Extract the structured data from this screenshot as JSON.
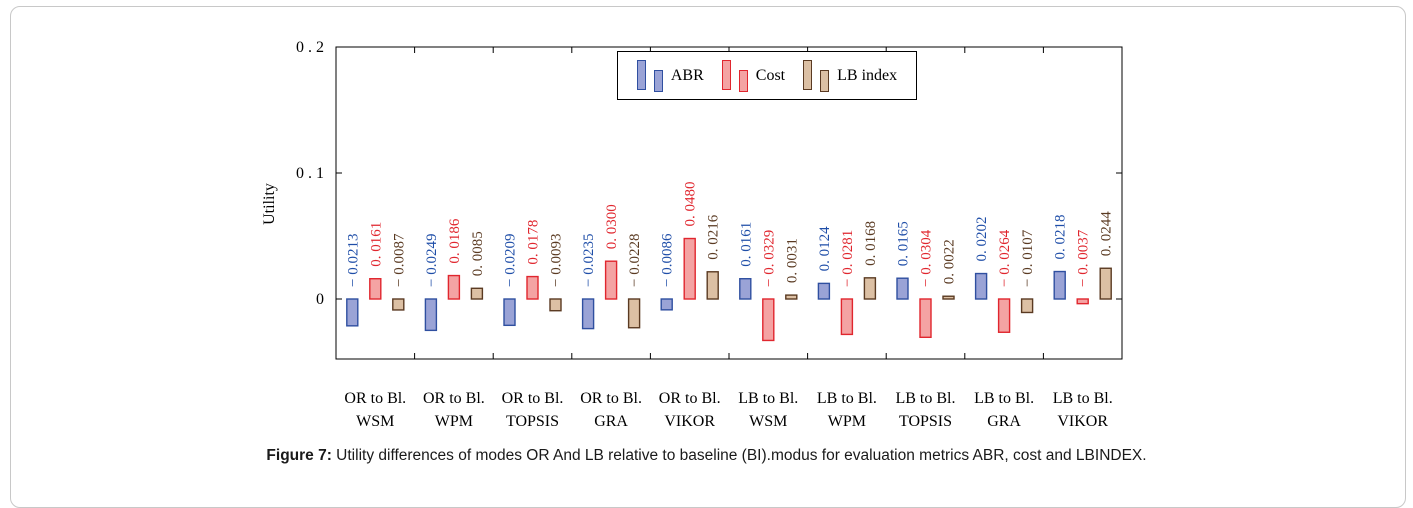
{
  "chart_data": {
    "type": "bar",
    "categories": [
      [
        "OR to Bl.",
        "WSM"
      ],
      [
        "OR to Bl.",
        "WPM"
      ],
      [
        "OR to Bl.",
        "TOPSIS"
      ],
      [
        "OR to Bl.",
        "GRA"
      ],
      [
        "OR to Bl.",
        "VIKOR"
      ],
      [
        "LB to Bl.",
        "WSM"
      ],
      [
        "LB to Bl.",
        "WPM"
      ],
      [
        "LB to Bl.",
        "TOPSIS"
      ],
      [
        "LB to Bl.",
        "GRA"
      ],
      [
        "LB to Bl.",
        "VIKOR"
      ]
    ],
    "series": [
      {
        "name": "ABR",
        "values": [
          -0.0213,
          -0.0249,
          -0.0209,
          -0.0235,
          -0.0086,
          0.0161,
          0.0124,
          0.0165,
          0.0202,
          0.0218
        ],
        "labels": [
          "− 0.0213",
          "− 0.0249",
          "− 0.0209",
          "− 0.0235",
          "− 0.0086",
          "0. 0161",
          "0. 0124",
          "0. 0165",
          "0. 0202",
          "0. 0218"
        ],
        "fill": "#9aa3d6",
        "stroke": "#2f4fa0",
        "label_color": "#1f4ea8"
      },
      {
        "name": "Cost",
        "values": [
          0.0161,
          0.0186,
          0.0178,
          0.03,
          0.048,
          -0.0329,
          -0.0281,
          -0.0304,
          -0.0264,
          -0.0037
        ],
        "labels": [
          "0. 0161",
          "0. 0186",
          "0. 0178",
          "0. 0300",
          "0. 0480",
          "− 0. 0329",
          "− 0. 0281",
          "− 0. 0304",
          "− 0. 0264",
          "− 0. 0037"
        ],
        "fill": "#f4a3a3",
        "stroke": "#e0262e",
        "label_color": "#e0262e"
      },
      {
        "name": "LB index",
        "values": [
          -0.0087,
          0.0085,
          -0.0093,
          -0.0228,
          0.0216,
          0.0031,
          0.0168,
          0.0022,
          -0.0107,
          0.0244
        ],
        "labels": [
          "− 0.0087",
          "0. 0085",
          "− 0.0093",
          "− 0.0228",
          "0. 0216",
          "0. 0031",
          "0. 0168",
          "0. 0022",
          "− 0. 0107",
          "0. 0244"
        ],
        "fill": "#dcc0a4",
        "stroke": "#5a3a22",
        "label_color": "#5a3a22"
      }
    ],
    "ylabel": "Utility",
    "yticks": [
      {
        "value": 0.2,
        "label": "0 . 2"
      },
      {
        "value": 0.1,
        "label": "0 . 1"
      },
      {
        "value": 0,
        "label": "0"
      }
    ],
    "ylim": [
      -0.045,
      0.2
    ],
    "legend": "top-center",
    "grid": false
  },
  "legend": {
    "abr": "ABR",
    "cost": "Cost",
    "lb": "LB index"
  },
  "caption": {
    "label": "Figure 7:",
    "text": " Utility differences of modes OR And LB relative to baseline (BI).modus for evaluation metrics ABR, cost and LBINDEX."
  }
}
